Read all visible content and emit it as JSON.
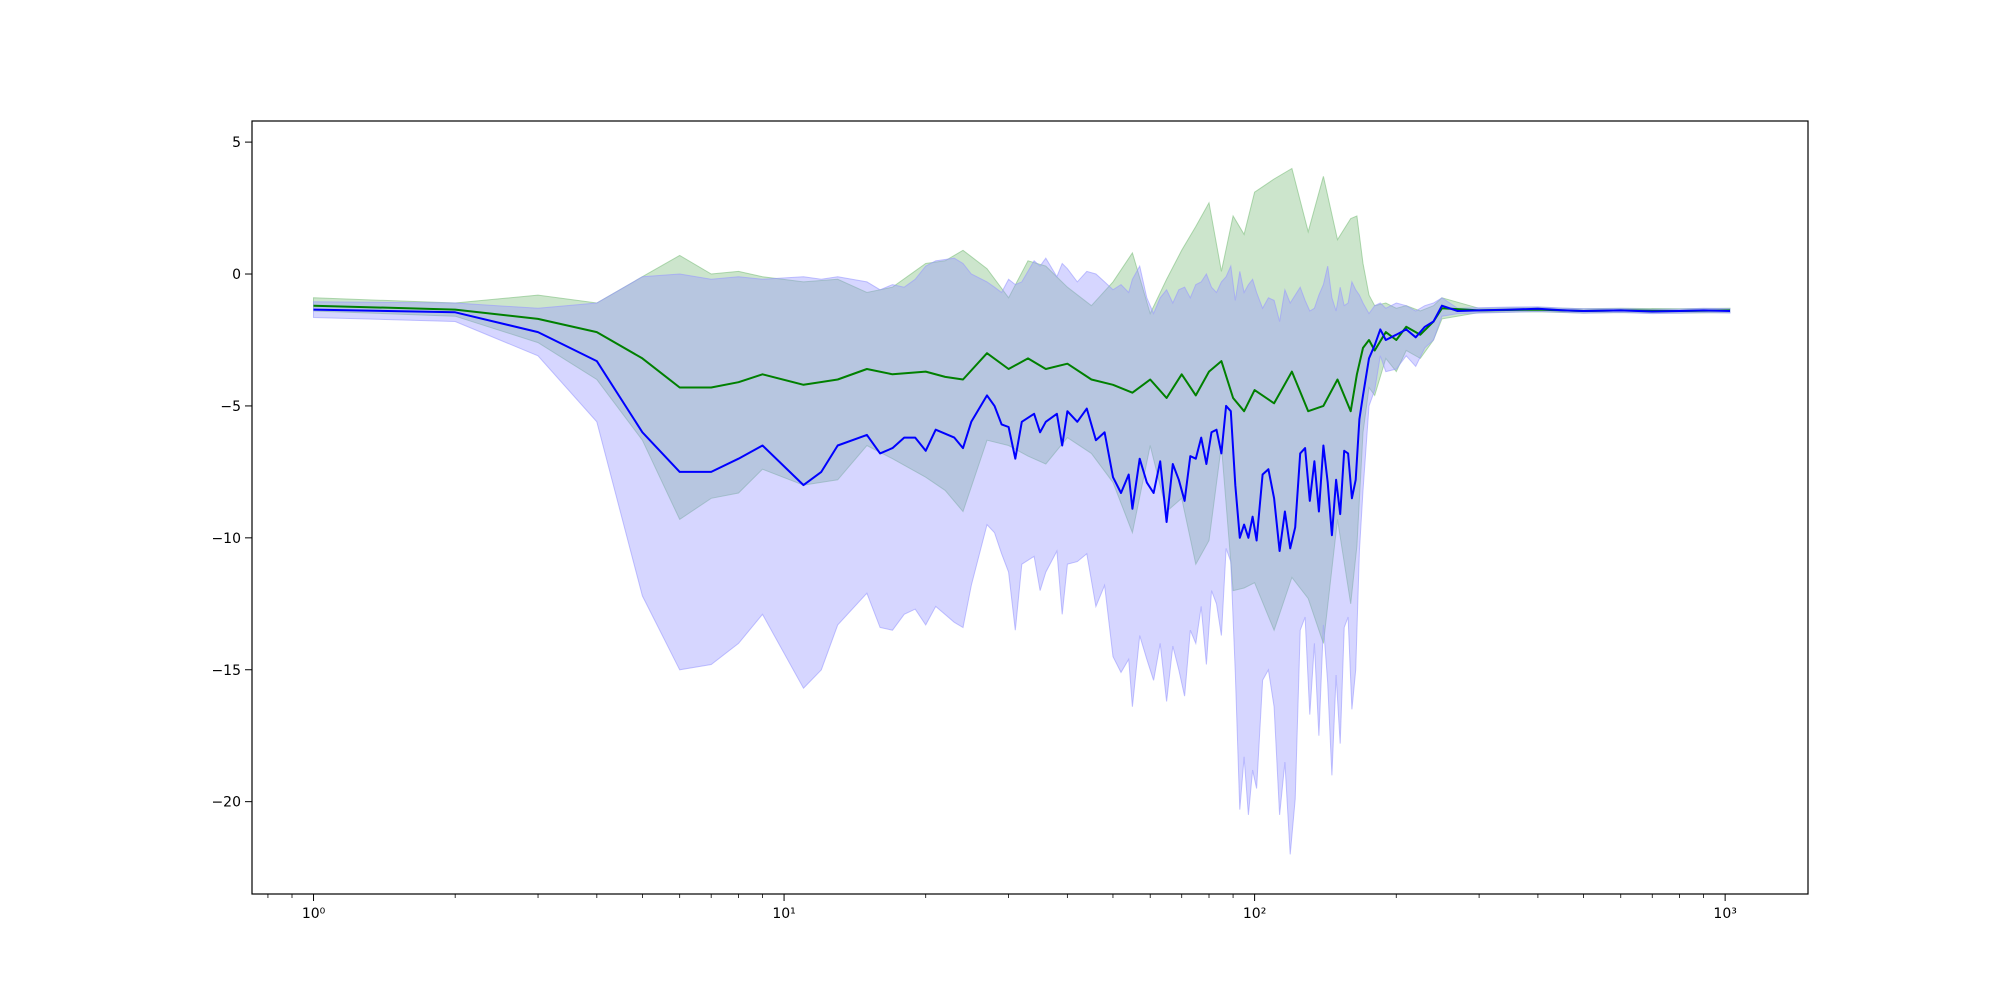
{
  "chart_data": {
    "type": "line",
    "title": "",
    "xlabel": "",
    "ylabel": "",
    "x_scale": "log",
    "xlim": [
      0.74,
      1500
    ],
    "ylim": [
      -23.5,
      5.8
    ],
    "grid": false,
    "legend": "none",
    "x_ticks": [
      {
        "value": 1,
        "label": "10⁰"
      },
      {
        "value": 10,
        "label": "10¹"
      },
      {
        "value": 100,
        "label": "10²"
      },
      {
        "value": 1000,
        "label": "10³"
      }
    ],
    "y_ticks": [
      {
        "value": 5,
        "label": "5"
      },
      {
        "value": 0,
        "label": "0"
      },
      {
        "value": -5,
        "label": "−5"
      },
      {
        "value": -10,
        "label": "−10"
      },
      {
        "value": -15,
        "label": "−15"
      },
      {
        "value": -20,
        "label": "−20"
      }
    ],
    "series": [
      {
        "color": "#008000",
        "band_color": "#7fbf7f",
        "points": [
          [
            1,
            -1.2,
            -0.9,
            -1.4
          ],
          [
            2,
            -1.35,
            -1.1,
            -1.6
          ],
          [
            3,
            -1.7,
            -0.8,
            -2.6
          ],
          [
            4,
            -2.2,
            -1.1,
            -4.0
          ],
          [
            5,
            -3.2,
            -0.1,
            -6.3
          ],
          [
            6,
            -4.3,
            0.7,
            -9.3
          ],
          [
            7,
            -4.3,
            0.0,
            -8.5
          ],
          [
            8,
            -4.1,
            0.1,
            -8.3
          ],
          [
            9,
            -3.8,
            -0.1,
            -7.4
          ],
          [
            11,
            -4.2,
            -0.3,
            -8.0
          ],
          [
            13,
            -4.0,
            -0.2,
            -7.8
          ],
          [
            15,
            -3.6,
            -0.7,
            -6.5
          ],
          [
            17,
            -3.8,
            -0.5,
            -7.0
          ],
          [
            20,
            -3.7,
            0.4,
            -7.7
          ],
          [
            22,
            -3.9,
            0.5,
            -8.2
          ],
          [
            24,
            -4.0,
            0.9,
            -9.0
          ],
          [
            27,
            -3.0,
            0.2,
            -6.3
          ],
          [
            30,
            -3.6,
            -0.9,
            -6.5
          ],
          [
            33,
            -3.2,
            0.5,
            -6.9
          ],
          [
            36,
            -3.6,
            0.3,
            -7.2
          ],
          [
            40,
            -3.4,
            -0.5,
            -6.2
          ],
          [
            45,
            -4.0,
            -1.2,
            -6.8
          ],
          [
            50,
            -4.2,
            -0.3,
            -7.9
          ],
          [
            55,
            -4.5,
            0.8,
            -9.8
          ],
          [
            60,
            -4.0,
            -1.5,
            -6.5
          ],
          [
            65,
            -4.7,
            -0.2,
            -9.0
          ],
          [
            70,
            -3.8,
            0.9,
            -8.5
          ],
          [
            75,
            -4.6,
            1.8,
            -11.0
          ],
          [
            80,
            -3.7,
            2.7,
            -10.1
          ],
          [
            85,
            -3.3,
            0.1,
            -6.5
          ],
          [
            90,
            -4.7,
            2.2,
            -12.0
          ],
          [
            95,
            -5.2,
            1.5,
            -11.9
          ],
          [
            100,
            -4.4,
            3.1,
            -11.7
          ],
          [
            110,
            -4.9,
            3.6,
            -13.5
          ],
          [
            120,
            -3.7,
            4.0,
            -11.5
          ],
          [
            130,
            -5.2,
            1.6,
            -12.3
          ],
          [
            140,
            -5.0,
            3.7,
            -14.0
          ],
          [
            150,
            -4.0,
            1.3,
            -9.3
          ],
          [
            160,
            -5.2,
            2.1,
            -12.5
          ],
          [
            165,
            -3.8,
            2.2,
            -10.3
          ],
          [
            170,
            -2.8,
            0.4,
            -6.0
          ],
          [
            175,
            -2.5,
            -0.8,
            -4.3
          ],
          [
            180,
            -2.9,
            -1.2,
            -4.6
          ],
          [
            190,
            -2.2,
            -1.1,
            -3.2
          ],
          [
            200,
            -2.5,
            -1.3,
            -3.7
          ],
          [
            210,
            -2.0,
            -1.2,
            -2.9
          ],
          [
            225,
            -2.3,
            -1.4,
            -3.2
          ],
          [
            240,
            -1.8,
            -1.2,
            -2.5
          ],
          [
            250,
            -1.3,
            -0.9,
            -1.7
          ],
          [
            300,
            -1.38,
            -1.3,
            -1.46
          ],
          [
            400,
            -1.35,
            -1.27,
            -1.43
          ],
          [
            500,
            -1.4,
            -1.32,
            -1.48
          ],
          [
            600,
            -1.38,
            -1.3,
            -1.46
          ],
          [
            800,
            -1.4,
            -1.32,
            -1.48
          ],
          [
            1024,
            -1.38,
            -1.3,
            -1.46
          ]
        ]
      },
      {
        "color": "#0000ff",
        "band_color": "#9999ff",
        "points": [
          [
            1,
            -1.35,
            -1.05,
            -1.65
          ],
          [
            2,
            -1.45,
            -1.1,
            -1.8
          ],
          [
            3,
            -2.2,
            -1.3,
            -3.1
          ],
          [
            4,
            -3.3,
            -1.1,
            -5.6
          ],
          [
            5,
            -6.0,
            -0.1,
            -12.2
          ],
          [
            6,
            -7.5,
            0.0,
            -15.0
          ],
          [
            7,
            -7.5,
            -0.2,
            -14.8
          ],
          [
            8,
            -7.0,
            -0.1,
            -14.0
          ],
          [
            9,
            -6.5,
            -0.2,
            -12.9
          ],
          [
            11,
            -8.0,
            -0.1,
            -15.7
          ],
          [
            12,
            -7.5,
            -0.2,
            -15.0
          ],
          [
            13,
            -6.5,
            -0.1,
            -13.3
          ],
          [
            15,
            -6.1,
            -0.3,
            -12.1
          ],
          [
            16,
            -6.8,
            -0.6,
            -13.4
          ],
          [
            17,
            -6.6,
            -0.4,
            -13.5
          ],
          [
            18,
            -6.2,
            -0.5,
            -12.9
          ],
          [
            19,
            -6.2,
            -0.2,
            -12.7
          ],
          [
            20,
            -6.7,
            0.3,
            -13.3
          ],
          [
            21,
            -5.9,
            0.5,
            -12.6
          ],
          [
            23,
            -6.2,
            0.6,
            -13.2
          ],
          [
            24,
            -6.6,
            0.4,
            -13.4
          ],
          [
            25,
            -5.6,
            0.0,
            -11.8
          ],
          [
            27,
            -4.6,
            -0.3,
            -9.5
          ],
          [
            28,
            -5.0,
            -0.5,
            -9.8
          ],
          [
            29,
            -5.7,
            -0.7,
            -10.6
          ],
          [
            30,
            -5.8,
            -0.2,
            -11.3
          ],
          [
            31,
            -7.0,
            -0.4,
            -13.5
          ],
          [
            32,
            -5.6,
            -0.3,
            -11.0
          ],
          [
            34,
            -5.3,
            0.5,
            -10.7
          ],
          [
            35,
            -6.0,
            0.3,
            -12.0
          ],
          [
            36,
            -5.6,
            0.6,
            -11.3
          ],
          [
            38,
            -5.3,
            -0.1,
            -10.5
          ],
          [
            39,
            -6.5,
            0.4,
            -12.9
          ],
          [
            40,
            -5.2,
            0.2,
            -11.0
          ],
          [
            42,
            -5.6,
            -0.3,
            -10.9
          ],
          [
            44,
            -5.1,
            0.1,
            -10.6
          ],
          [
            46,
            -6.3,
            0.0,
            -12.6
          ],
          [
            48,
            -6.0,
            -0.3,
            -11.8
          ],
          [
            50,
            -7.7,
            -0.6,
            -14.5
          ],
          [
            52,
            -8.3,
            -0.4,
            -15.1
          ],
          [
            54,
            -7.6,
            -0.7,
            -14.6
          ],
          [
            55,
            -8.9,
            -0.2,
            -16.4
          ],
          [
            57,
            -7.0,
            0.3,
            -13.7
          ],
          [
            59,
            -7.9,
            -0.9,
            -14.6
          ],
          [
            61,
            -8.3,
            -1.5,
            -15.4
          ],
          [
            63,
            -7.1,
            -0.9,
            -14.0
          ],
          [
            65,
            -9.4,
            -0.6,
            -16.2
          ],
          [
            67,
            -7.2,
            -1.1,
            -14.1
          ],
          [
            69,
            -7.8,
            -0.6,
            -15.0
          ],
          [
            71,
            -8.6,
            -0.5,
            -16.0
          ],
          [
            73,
            -6.9,
            -0.9,
            -13.5
          ],
          [
            75,
            -7.0,
            -0.4,
            -14.0
          ],
          [
            77,
            -6.2,
            -0.3,
            -12.6
          ],
          [
            79,
            -7.2,
            0.0,
            -14.8
          ],
          [
            81,
            -6.0,
            -0.5,
            -12.0
          ],
          [
            83,
            -5.9,
            -0.7,
            -12.5
          ],
          [
            85,
            -6.8,
            -0.3,
            -13.7
          ],
          [
            87,
            -5.0,
            -0.1,
            -10.4
          ],
          [
            89,
            -5.2,
            0.3,
            -10.9
          ],
          [
            91,
            -8.0,
            -1.0,
            -15.1
          ],
          [
            93,
            -10.0,
            0.1,
            -20.3
          ],
          [
            95,
            -9.5,
            -0.7,
            -18.3
          ],
          [
            97,
            -10.0,
            -0.4,
            -20.5
          ],
          [
            99,
            -9.2,
            -0.2,
            -18.8
          ],
          [
            101,
            -10.1,
            -0.7,
            -19.5
          ],
          [
            104,
            -7.6,
            -1.3,
            -15.4
          ],
          [
            107,
            -7.4,
            -0.9,
            -15.0
          ],
          [
            110,
            -8.5,
            -1.0,
            -16.4
          ],
          [
            113,
            -10.5,
            -1.8,
            -20.5
          ],
          [
            116,
            -9.0,
            -0.6,
            -18.5
          ],
          [
            119,
            -10.4,
            -1.1,
            -22.0
          ],
          [
            122,
            -9.6,
            -0.8,
            -19.9
          ],
          [
            125,
            -6.8,
            -0.5,
            -13.5
          ],
          [
            128,
            -6.6,
            -1.0,
            -13.0
          ],
          [
            131,
            -8.6,
            -1.4,
            -16.7
          ],
          [
            134,
            -7.1,
            -1.3,
            -14.0
          ],
          [
            137,
            -9.0,
            -0.8,
            -17.5
          ],
          [
            140,
            -6.5,
            -0.4,
            -13.3
          ],
          [
            143,
            -7.9,
            0.3,
            -15.5
          ],
          [
            146,
            -9.9,
            -0.9,
            -19.0
          ],
          [
            149,
            -7.8,
            -1.4,
            -15.2
          ],
          [
            152,
            -9.1,
            -0.5,
            -17.8
          ],
          [
            155,
            -6.7,
            -1.2,
            -13.4
          ],
          [
            158,
            -6.8,
            -1.1,
            -13.0
          ],
          [
            161,
            -8.5,
            -0.3,
            -16.5
          ],
          [
            164,
            -7.8,
            -0.6,
            -15.0
          ],
          [
            167,
            -5.5,
            -0.8,
            -10.5
          ],
          [
            170,
            -4.6,
            -1.1,
            -8.2
          ],
          [
            175,
            -3.2,
            -1.5,
            -5.0
          ],
          [
            180,
            -2.7,
            -1.2,
            -4.4
          ],
          [
            185,
            -2.1,
            -1.1,
            -3.1
          ],
          [
            190,
            -2.5,
            -1.3,
            -3.7
          ],
          [
            200,
            -2.3,
            -1.1,
            -3.6
          ],
          [
            210,
            -2.1,
            -1.2,
            -3.1
          ],
          [
            220,
            -2.4,
            -1.4,
            -3.5
          ],
          [
            230,
            -2.0,
            -1.2,
            -2.8
          ],
          [
            240,
            -1.8,
            -1.1,
            -2.5
          ],
          [
            250,
            -1.2,
            -0.9,
            -1.6
          ],
          [
            270,
            -1.4,
            -1.3,
            -1.5
          ],
          [
            300,
            -1.38,
            -1.28,
            -1.48
          ],
          [
            350,
            -1.35,
            -1.25,
            -1.45
          ],
          [
            400,
            -1.32,
            -1.24,
            -1.42
          ],
          [
            450,
            -1.37,
            -1.29,
            -1.45
          ],
          [
            500,
            -1.4,
            -1.32,
            -1.48
          ],
          [
            600,
            -1.38,
            -1.31,
            -1.46
          ],
          [
            700,
            -1.42,
            -1.34,
            -1.5
          ],
          [
            800,
            -1.4,
            -1.33,
            -1.48
          ],
          [
            900,
            -1.38,
            -1.3,
            -1.46
          ],
          [
            1024,
            -1.4,
            -1.32,
            -1.48
          ]
        ]
      }
    ]
  }
}
